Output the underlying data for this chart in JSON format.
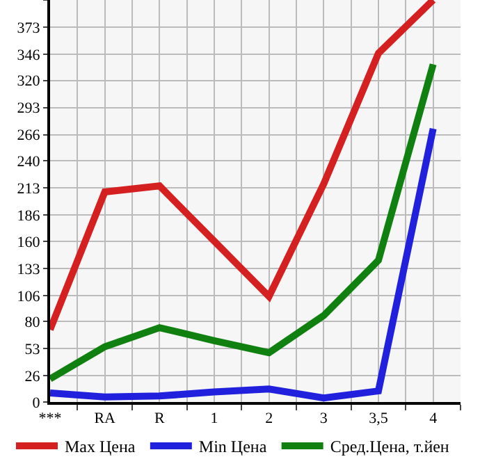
{
  "chart_data": {
    "type": "line",
    "categories": [
      "***",
      "RA",
      "R",
      "1",
      "2",
      "3",
      "3,5",
      "4"
    ],
    "series": [
      {
        "name": "Max Цена",
        "color": "#d42020",
        "values": [
          72,
          209,
          215,
          160,
          105,
          217,
          347,
          400
        ]
      },
      {
        "name": "Min Цена",
        "color": "#2020dd",
        "values": [
          9,
          5,
          6,
          10,
          13,
          4,
          11,
          272
        ]
      },
      {
        "name": "Сред.Цена, т.йен",
        "color": "#108010",
        "values": [
          23,
          55,
          74,
          61,
          49,
          86,
          141,
          336
        ]
      }
    ],
    "ylim": [
      0,
      400
    ],
    "yticks": [
      0,
      26,
      53,
      80,
      106,
      133,
      160,
      186,
      213,
      240,
      266,
      293,
      320,
      346,
      373,
      {
        "value": 400,
        "label": null
      }
    ],
    "grid": true,
    "legend": "bottom",
    "marker": "none",
    "line_style": "solid"
  }
}
